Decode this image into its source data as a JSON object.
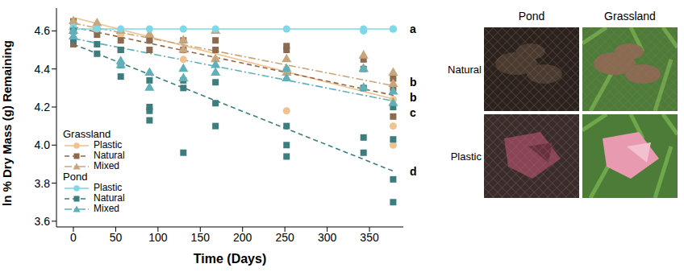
{
  "chart_data": {
    "type": "scatter",
    "y_label": "ln % Dry Mass (g) Remaining",
    "x_label": "Time (Days)",
    "xlim": [
      -20,
      390
    ],
    "xticks": [
      0,
      50,
      100,
      150,
      200,
      250,
      300,
      350
    ],
    "ylim": [
      3.57,
      4.72
    ],
    "yticks": [
      3.6,
      3.8,
      {
        "value": 4,
        "label": "4.0"
      },
      4.2,
      4.4,
      4.6
    ],
    "legend": "lower left",
    "series": [
      {
        "name": "Plastic",
        "group": "Grassland",
        "color": "#f2c28e",
        "marker": "circle",
        "line_style": "solid",
        "x": [
          0,
          0,
          28,
          56,
          90,
          130,
          130,
          168,
          252,
          252,
          343,
          378,
          378,
          378
        ],
        "values": [
          4.64,
          4.6,
          4.6,
          4.58,
          4.55,
          4.5,
          4.45,
          4.45,
          4.4,
          4.18,
          4.3,
          4.1,
          4.0,
          4.24
        ],
        "trend": {
          "x": [
            0,
            380
          ],
          "values": [
            4.67,
            4.24
          ]
        }
      },
      {
        "name": "Natural",
        "group": "Grassland",
        "color": "#8b6a4f",
        "marker": "square",
        "line_style": "dashed",
        "x": [
          0,
          0,
          0,
          28,
          56,
          56,
          90,
          90,
          130,
          130,
          168,
          168,
          252,
          252,
          343,
          343,
          378,
          378,
          378
        ],
        "values": [
          4.53,
          4.6,
          4.65,
          4.58,
          4.55,
          4.5,
          4.55,
          4.5,
          4.55,
          4.5,
          4.5,
          4.55,
          4.5,
          4.52,
          4.4,
          4.45,
          4.35,
          4.3,
          4.15
        ],
        "trend": {
          "x": [
            0,
            380
          ],
          "values": [
            4.62,
            4.26
          ]
        }
      },
      {
        "name": "Mixed",
        "group": "Grassland",
        "color": "#c9a57c",
        "marker": "triangle",
        "line_style": "dashdot",
        "x": [
          0,
          0,
          28,
          28,
          56,
          90,
          130,
          130,
          168,
          168,
          252,
          252,
          343,
          343,
          378,
          378
        ],
        "values": [
          4.65,
          4.62,
          4.64,
          4.62,
          4.6,
          4.58,
          4.55,
          4.5,
          4.45,
          4.6,
          4.45,
          4.38,
          4.47,
          4.4,
          4.38,
          4.32
        ],
        "trend": {
          "x": [
            0,
            380
          ],
          "values": [
            4.64,
            4.31
          ]
        }
      },
      {
        "name": "Plastic",
        "group": "Pond",
        "color": "#7fd8e8",
        "marker": "circle",
        "line_style": "solid",
        "x": [
          0,
          0,
          28,
          56,
          90,
          130,
          168,
          252,
          343,
          343,
          378,
          378
        ],
        "values": [
          4.62,
          4.61,
          4.61,
          4.61,
          4.61,
          4.61,
          4.61,
          4.61,
          4.61,
          4.6,
          4.61,
          4.61
        ],
        "trend": {
          "x": [
            0,
            380
          ],
          "values": [
            4.61,
            4.61
          ]
        }
      },
      {
        "name": "Natural",
        "group": "Pond",
        "color": "#3d7d7d",
        "marker": "square",
        "line_style": "dashed",
        "x": [
          0,
          0,
          28,
          28,
          56,
          56,
          56,
          90,
          90,
          90,
          90,
          130,
          130,
          130,
          168,
          168,
          168,
          252,
          252,
          252,
          343,
          343,
          343,
          378,
          378,
          378,
          378
        ],
        "values": [
          4.55,
          4.6,
          4.53,
          4.48,
          4.42,
          4.36,
          4.5,
          4.2,
          4.13,
          4.18,
          4.34,
          3.96,
          4.3,
          4.34,
          4.22,
          4.1,
          4.33,
          3.94,
          4.0,
          4.1,
          3.96,
          4.04,
          4.3,
          3.7,
          3.82,
          4.03,
          4.2
        ],
        "trend": {
          "x": [
            0,
            380
          ],
          "values": [
            4.53,
            3.86
          ]
        }
      },
      {
        "name": "Mixed",
        "group": "Pond",
        "color": "#5fb0b8",
        "marker": "triangle",
        "line_style": "dashdot",
        "x": [
          0,
          0,
          56,
          56,
          90,
          90,
          130,
          130,
          168,
          168,
          252,
          252,
          343,
          343,
          378,
          378
        ],
        "values": [
          4.6,
          4.57,
          4.42,
          4.44,
          4.38,
          4.3,
          4.4,
          4.35,
          4.38,
          4.42,
          4.4,
          4.35,
          4.3,
          4.4,
          4.28,
          4.22
        ],
        "trend": {
          "x": [
            0,
            380
          ],
          "values": [
            4.56,
            4.23
          ]
        }
      }
    ],
    "annotations": [
      {
        "text": "a",
        "y": 4.61
      },
      {
        "text": "b",
        "y": 4.33
      },
      {
        "text": "b",
        "y": 4.25
      },
      {
        "text": "c",
        "y": 4.17
      },
      {
        "text": "d",
        "y": 3.86
      }
    ]
  },
  "panels": {
    "columns": [
      "Pond",
      "Grassland"
    ],
    "rows": [
      "Natural",
      "Plastic"
    ]
  }
}
